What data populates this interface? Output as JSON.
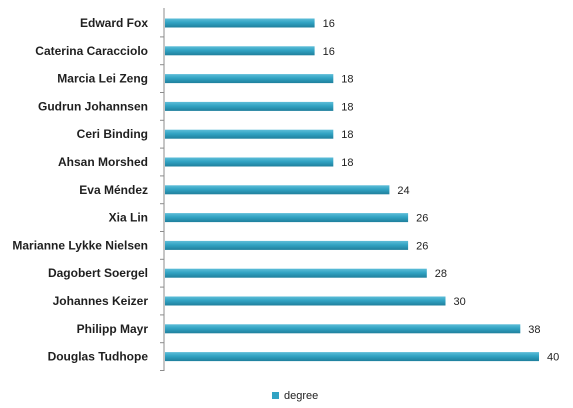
{
  "chart_data": {
    "type": "bar",
    "orientation": "horizontal",
    "categories": [
      "Edward Fox",
      "Caterina Caracciolo",
      "Marcia Lei Zeng",
      "Gudrun Johannsen",
      "Ceri Binding",
      "Ahsan Morshed",
      "Eva Méndez",
      "Xia Lin",
      "Marianne Lykke Nielsen",
      "Dagobert Soergel",
      "Johannes Keizer",
      "Philipp Mayr",
      "Douglas Tudhope"
    ],
    "series": [
      {
        "name": "degree",
        "values": [
          16,
          16,
          18,
          18,
          18,
          18,
          24,
          26,
          26,
          28,
          30,
          38,
          40
        ],
        "color": "#31a3c3"
      }
    ],
    "data_labels": true,
    "xlim": [
      0,
      40
    ],
    "grid": false,
    "legend": "bottom"
  }
}
